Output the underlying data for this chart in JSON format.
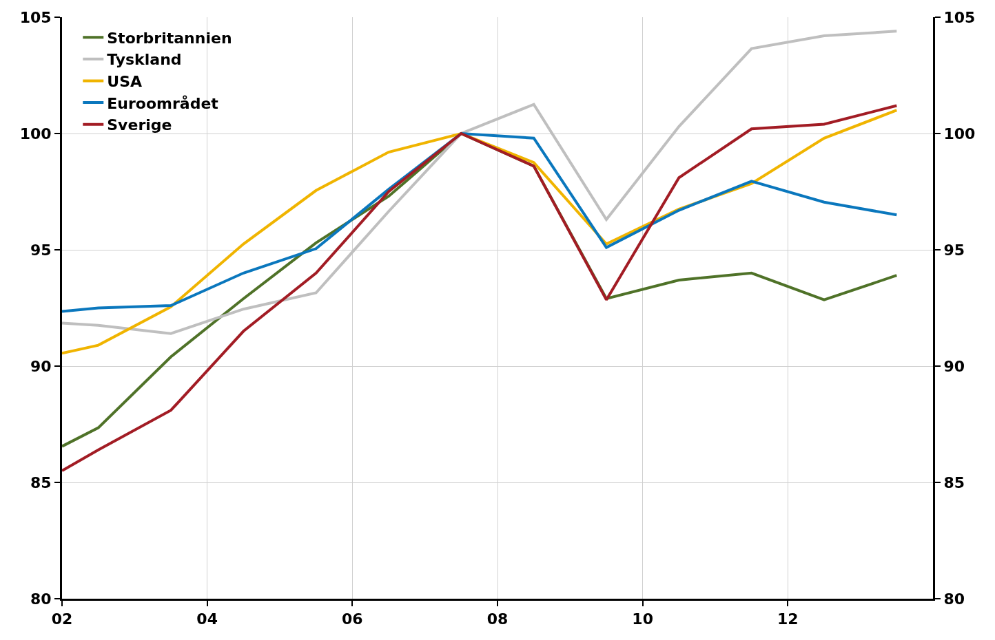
{
  "chart_data": {
    "type": "line",
    "x": [
      2002,
      2002.5,
      2003.5,
      2004.5,
      2005.5,
      2006.5,
      2007.5,
      2008.5,
      2009.5,
      2010.5,
      2011.5,
      2012.5,
      2013.5
    ],
    "series": [
      {
        "name": "Storbritannien",
        "color": "#4f7228",
        "values": [
          86.55,
          87.35,
          90.4,
          92.9,
          95.3,
          97.3,
          100,
          98.6,
          92.9,
          93.7,
          94.0,
          92.85,
          93.9
        ]
      },
      {
        "name": "Tyskland",
        "color": "#bfbfbf",
        "values": [
          91.85,
          91.75,
          91.4,
          92.45,
          93.15,
          96.65,
          100,
          101.25,
          96.3,
          100.3,
          103.65,
          104.2,
          104.4
        ]
      },
      {
        "name": "USA",
        "color": "#f0b400",
        "values": [
          90.55,
          90.9,
          92.55,
          95.25,
          97.55,
          99.2,
          100,
          98.75,
          95.25,
          96.75,
          97.85,
          99.8,
          101.0
        ]
      },
      {
        "name": "Euroområdet",
        "color": "#0a77bd",
        "values": [
          92.35,
          92.5,
          92.6,
          94.0,
          95.05,
          97.6,
          100,
          99.8,
          95.1,
          96.7,
          97.95,
          97.05,
          96.5
        ]
      },
      {
        "name": "Sverige",
        "color": "#a21c24",
        "values": [
          85.5,
          86.4,
          88.1,
          91.5,
          94.0,
          97.5,
          100,
          98.6,
          92.85,
          98.1,
          100.2,
          100.4,
          101.2
        ]
      }
    ],
    "xlim": [
      2002,
      2014
    ],
    "xticks": [
      {
        "value": 2002,
        "label": "02"
      },
      {
        "value": 2004,
        "label": "04"
      },
      {
        "value": 2006,
        "label": "06"
      },
      {
        "value": 2008,
        "label": "08"
      },
      {
        "value": 2010,
        "label": "10"
      },
      {
        "value": 2012,
        "label": "12"
      }
    ],
    "ylim": [
      80,
      105
    ],
    "yticks": [
      80,
      85,
      90,
      95,
      100,
      105
    ],
    "y2lim": [
      80,
      105
    ],
    "y2ticks": [
      80,
      85,
      90,
      95,
      100,
      105
    ],
    "grid": true,
    "legend": "top left",
    "marker": "none",
    "line_style": "solid"
  }
}
